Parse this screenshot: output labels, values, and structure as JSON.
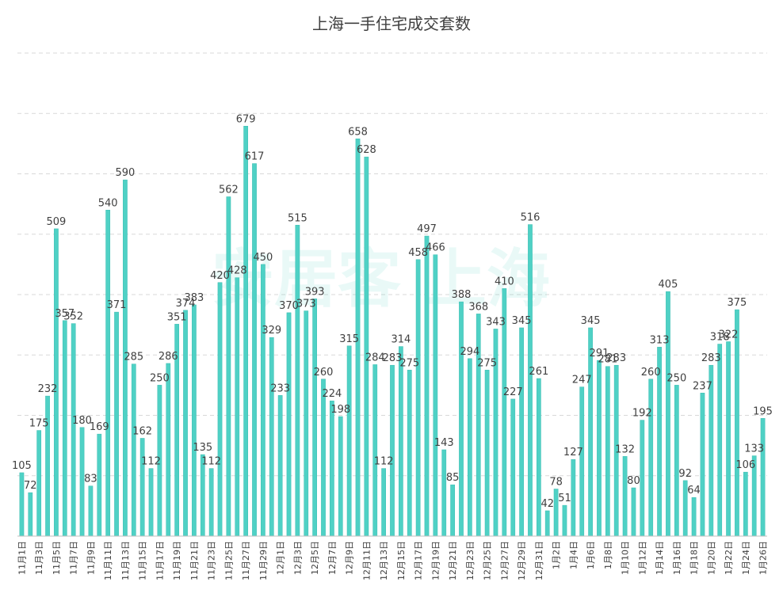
{
  "chart_data": {
    "type": "bar",
    "title": "上海一手住宅成交套数",
    "xlabel": "",
    "ylabel": "",
    "ylim": [
      0,
      800
    ],
    "grid": true,
    "legend": "none",
    "color": "#4fd1c5",
    "categories": [
      "11月1日",
      "11月2日",
      "11月3日",
      "11月4日",
      "11月5日",
      "11月6日",
      "11月7日",
      "11月8日",
      "11月9日",
      "11月10日",
      "11月11日",
      "11月12日",
      "11月13日",
      "11月14日",
      "11月15日",
      "11月16日",
      "11月17日",
      "11月18日",
      "11月19日",
      "11月20日",
      "11月21日",
      "11月22日",
      "11月23日",
      "11月24日",
      "11月25日",
      "11月26日",
      "11月27日",
      "11月28日",
      "11月29日",
      "11月30日",
      "12月1日",
      "12月2日",
      "12月3日",
      "12月4日",
      "12月5日",
      "12月6日",
      "12月7日",
      "12月8日",
      "12月9日",
      "12月10日",
      "12月11日",
      "12月12日",
      "12月13日",
      "12月14日",
      "12月15日",
      "12月16日",
      "12月17日",
      "12月18日",
      "12月19日",
      "12月20日",
      "12月21日",
      "12月22日",
      "12月23日",
      "12月24日",
      "12月25日",
      "12月26日",
      "12月27日",
      "12月28日",
      "12月29日",
      "12月30日",
      "12月31日",
      "1月1日",
      "1月2日",
      "1月3日",
      "1月4日",
      "1月5日",
      "1月6日",
      "1月7日",
      "1月8日",
      "1月9日",
      "1月10日",
      "1月11日",
      "1月12日",
      "1月13日",
      "1月14日",
      "1月15日",
      "1月16日",
      "1月17日",
      "1月18日",
      "1月19日",
      "1月20日",
      "1月21日",
      "1月22日",
      "1月23日",
      "1月24日",
      "1月25日",
      "1月26日"
    ],
    "tick_labels": [
      "11月1日",
      "11月3日",
      "11月5日",
      "11月7日",
      "11月9日",
      "11月11日",
      "11月13日",
      "11月15日",
      "11月17日",
      "11月19日",
      "11月21日",
      "11月23日",
      "11月25日",
      "11月27日",
      "11月29日",
      "12月1日",
      "12月3日",
      "12月5日",
      "12月7日",
      "12月9日",
      "12月11日",
      "12月13日",
      "12月15日",
      "12月17日",
      "12月19日",
      "12月21日",
      "12月23日",
      "12月25日",
      "12月27日",
      "12月29日",
      "12月31日",
      "1月2日",
      "1月4日",
      "1月6日",
      "1月8日",
      "1月10日",
      "1月12日",
      "1月14日",
      "1月16日",
      "1月18日",
      "1月20日",
      "1月22日",
      "1月24日",
      "1月26日"
    ],
    "values": [
      105,
      72,
      175,
      232,
      509,
      357,
      352,
      180,
      83,
      169,
      540,
      371,
      590,
      285,
      162,
      112,
      250,
      286,
      351,
      374,
      383,
      135,
      112,
      420,
      562,
      428,
      679,
      617,
      450,
      329,
      233,
      370,
      515,
      373,
      393,
      260,
      224,
      198,
      315,
      658,
      628,
      284,
      112,
      283,
      314,
      275,
      458,
      497,
      466,
      143,
      85,
      388,
      294,
      368,
      275,
      343,
      410,
      227,
      345,
      516,
      261,
      42,
      78,
      51,
      127,
      247,
      345,
      291,
      281,
      283,
      132,
      80,
      192,
      260,
      313,
      405,
      250,
      92,
      64,
      237,
      283,
      318,
      322,
      375,
      106,
      133,
      195
    ]
  },
  "watermark": "安居客 上海"
}
